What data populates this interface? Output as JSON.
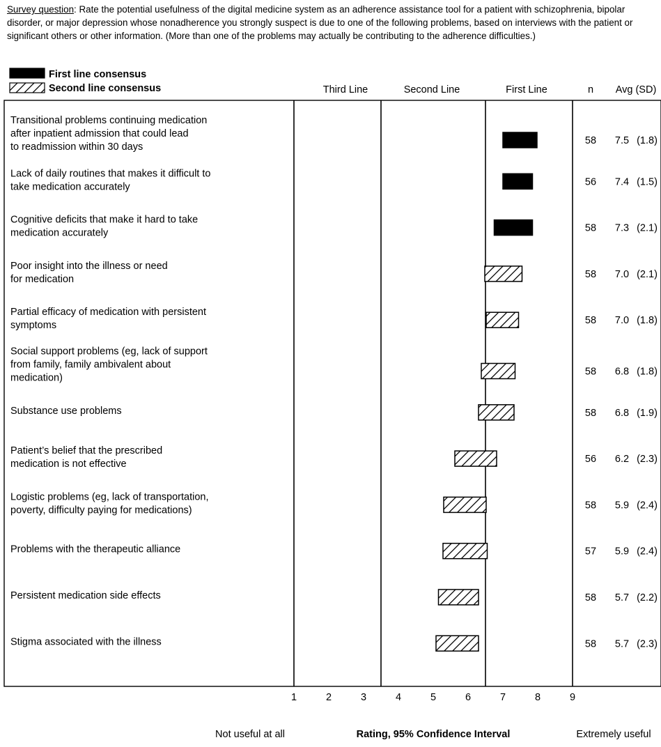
{
  "survey": {
    "label": "Survey question",
    "text": ": Rate the potential usefulness of the digital medicine system as an adherence assistance tool for a patient with schizophrenia, bipolar disorder, or major depression whose nonadherence you strongly suspect is due to one of the following problems, based on interviews with the patient or significant others or other information. (More than one of the problems may actually be contributing to the adherence difficulties.)"
  },
  "colors": {
    "first_line": "#000000",
    "second_line_fill": "#ffffff",
    "stroke": "#000000"
  },
  "chart_data": {
    "type": "bar",
    "orientation": "horizontal",
    "legend": [
      {
        "key": "first",
        "label": "First line consensus",
        "style": "solid"
      },
      {
        "key": "second",
        "label": "Second line consensus",
        "style": "hatched"
      }
    ],
    "zones": [
      "Third Line",
      "Second Line",
      "First Line"
    ],
    "zone_bounds": [
      1,
      3.5,
      6.5,
      9
    ],
    "columns": {
      "n": "n",
      "avg": "Avg (SD)"
    },
    "xlim": [
      1,
      9
    ],
    "xticks": [
      1,
      2,
      3,
      4,
      5,
      6,
      7,
      8,
      9
    ],
    "xlabel": "Rating, 95% Confidence Interval",
    "xlabel_left": "Not useful at all",
    "xlabel_right": "Extremely useful",
    "series": [
      {
        "label": [
          "Transitional problems continuing medication",
          "after inpatient admission that could lead",
          "to readmission within 30 days"
        ],
        "ci": [
          7.0,
          7.98
        ],
        "line": "first",
        "n": "58",
        "avg": "7.5",
        "sd": "(1.8)"
      },
      {
        "label": [
          "Lack of daily routines that makes it difficult to",
          "take medication accurately"
        ],
        "ci": [
          7.0,
          7.85
        ],
        "line": "first",
        "n": "56",
        "avg": "7.4",
        "sd": "(1.5)"
      },
      {
        "label": [
          "Cognitive deficits that make it hard to take",
          "medication accurately"
        ],
        "ci": [
          6.75,
          7.85
        ],
        "line": "first",
        "n": "58",
        "avg": "7.3",
        "sd": "(2.1)"
      },
      {
        "label": [
          "Poor insight into the illness or need",
          "for medication"
        ],
        "ci": [
          6.48,
          7.55
        ],
        "line": "second",
        "n": "58",
        "avg": "7.0",
        "sd": "(2.1)"
      },
      {
        "label": [
          "Partial efficacy of medication with persistent",
          "symptoms"
        ],
        "ci": [
          6.52,
          7.45
        ],
        "line": "second",
        "n": "58",
        "avg": "7.0",
        "sd": "(1.8)"
      },
      {
        "label": [
          "Social support problems (eg, lack of support",
          "from family, family ambivalent about",
          "medication)"
        ],
        "ci": [
          6.38,
          7.35
        ],
        "line": "second",
        "n": "58",
        "avg": "6.8",
        "sd": "(1.8)"
      },
      {
        "label": [
          "Substance use problems"
        ],
        "ci": [
          6.3,
          7.32
        ],
        "line": "second",
        "n": "58",
        "avg": "6.8",
        "sd": "(1.9)"
      },
      {
        "label": [
          "Patient’s belief that the prescribed",
          "medication is not effective"
        ],
        "ci": [
          5.62,
          6.82
        ],
        "line": "second",
        "n": "56",
        "avg": "6.2",
        "sd": "(2.3)"
      },
      {
        "label": [
          "Logistic problems (eg, lack of transportation,",
          "poverty, difficulty paying for medications)"
        ],
        "ci": [
          5.3,
          6.52
        ],
        "line": "second",
        "n": "58",
        "avg": "5.9",
        "sd": "(2.4)"
      },
      {
        "label": [
          "Problems with the therapeutic alliance"
        ],
        "ci": [
          5.28,
          6.55
        ],
        "line": "second",
        "n": "57",
        "avg": "5.9",
        "sd": "(2.4)"
      },
      {
        "label": [
          "Persistent medication side effects"
        ],
        "ci": [
          5.15,
          6.3
        ],
        "line": "second",
        "n": "58",
        "avg": "5.7",
        "sd": "(2.2)"
      },
      {
        "label": [
          "Stigma associated with the illness"
        ],
        "ci": [
          5.08,
          6.3
        ],
        "line": "second",
        "n": "58",
        "avg": "5.7",
        "sd": "(2.3)"
      }
    ]
  }
}
